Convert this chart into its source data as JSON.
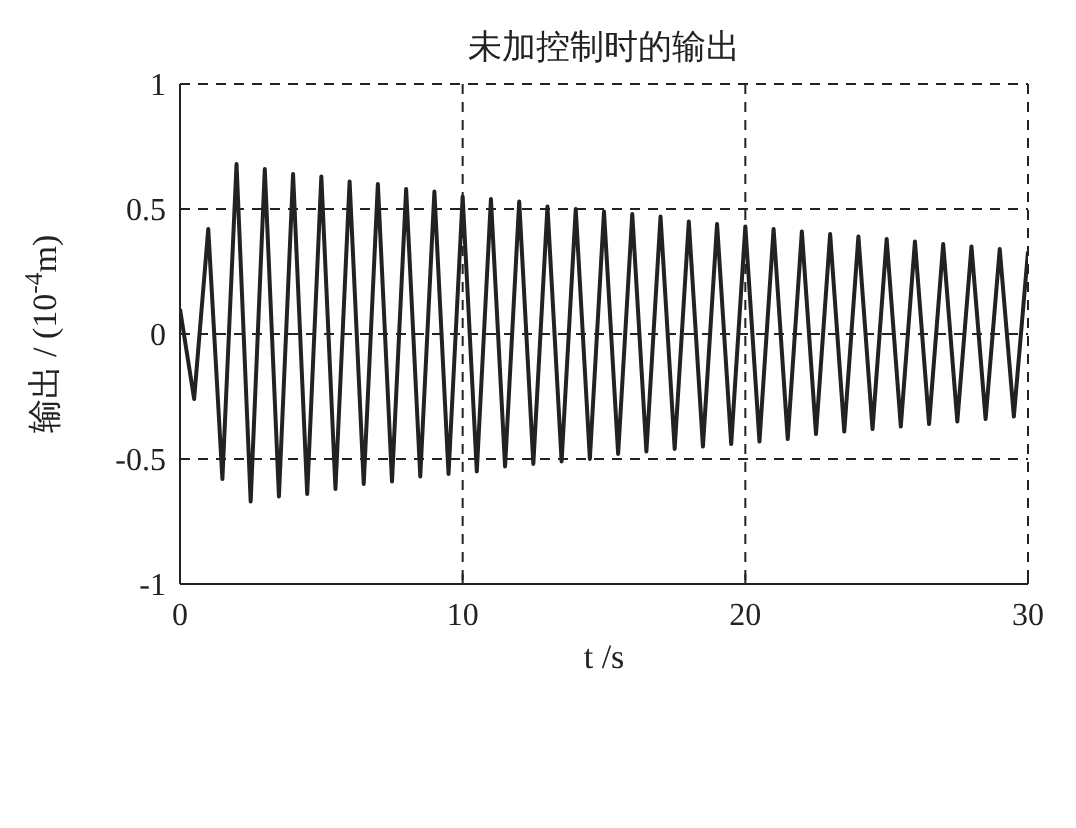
{
  "chart_data": {
    "type": "line",
    "title": "未加控制时的输出",
    "xlabel": "t /s",
    "ylabel": "输出 / (10$^{-4}$m)",
    "x": [
      0,
      0.5,
      1,
      1.5,
      2,
      2.5,
      3,
      3.5,
      4,
      4.5,
      5,
      5.5,
      6,
      6.5,
      7,
      7.5,
      8,
      8.5,
      9,
      9.5,
      10,
      10.5,
      11,
      11.5,
      12,
      12.5,
      13,
      13.5,
      14,
      14.5,
      15,
      15.5,
      16,
      16.5,
      17,
      17.5,
      18,
      18.5,
      19,
      19.5,
      20,
      20.5,
      21,
      21.5,
      22,
      22.5,
      23,
      23.5,
      24,
      24.5,
      25,
      25.5,
      26,
      26.5,
      27,
      27.5,
      28,
      28.5,
      29,
      29.5,
      30
    ],
    "series": [
      {
        "color": "#222222",
        "values": [
          0.1,
          -0.26,
          0.42,
          -0.58,
          0.68,
          -0.67,
          0.66,
          -0.65,
          0.64,
          -0.64,
          0.63,
          -0.62,
          0.61,
          -0.6,
          0.6,
          -0.59,
          0.58,
          -0.57,
          0.57,
          -0.56,
          0.55,
          -0.55,
          0.54,
          -0.53,
          0.53,
          -0.52,
          0.51,
          -0.51,
          0.5,
          -0.5,
          0.49,
          -0.48,
          0.48,
          -0.47,
          0.47,
          -0.46,
          0.45,
          -0.45,
          0.44,
          -0.44,
          0.43,
          -0.43,
          0.42,
          -0.42,
          0.41,
          -0.4,
          0.4,
          -0.39,
          0.39,
          -0.38,
          0.38,
          -0.37,
          0.37,
          -0.36,
          0.36,
          -0.35,
          0.35,
          -0.34,
          0.34,
          -0.33,
          0.33
        ]
      }
    ],
    "xlim": [
      0,
      30
    ],
    "xticks": [
      0,
      10,
      20,
      30
    ],
    "ylim": [
      -1,
      1
    ],
    "yticks": [
      -1,
      -0.5,
      0,
      0.5,
      1
    ],
    "grid": true
  }
}
